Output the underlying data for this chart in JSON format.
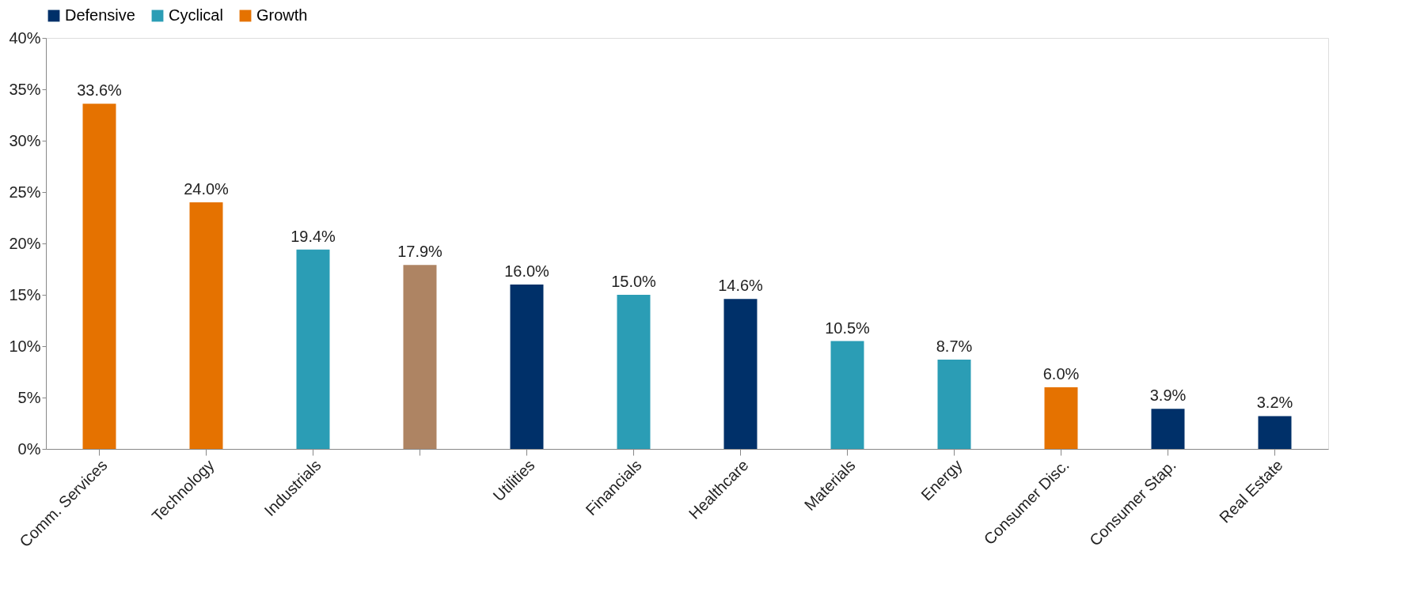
{
  "chart_data": {
    "type": "bar",
    "categories": [
      "Comm. Services",
      "Technology",
      "Industrials",
      null,
      "Utilities",
      "Financials",
      "Healthcare",
      "Materials",
      "Energy",
      "Consumer Disc.",
      "Consumer Stap.",
      "Real Estate"
    ],
    "series": [
      {
        "name": "Defensive",
        "color": "#003069",
        "values": [
          null,
          null,
          null,
          null,
          16.0,
          null,
          14.6,
          null,
          null,
          null,
          3.9,
          3.2
        ]
      },
      {
        "name": "Cyclical",
        "color": "#2b9db5",
        "values": [
          null,
          null,
          19.4,
          null,
          null,
          15.0,
          null,
          10.5,
          8.7,
          null,
          null,
          null
        ]
      },
      {
        "name": "Growth",
        "color": "#e57200",
        "values": [
          33.6,
          24.0,
          null,
          null,
          null,
          null,
          null,
          null,
          null,
          6.0,
          null,
          null
        ]
      },
      {
        "color": "#ae8463",
        "values": [
          null,
          null,
          null,
          17.9,
          null,
          null,
          null,
          null,
          null,
          null,
          null,
          null
        ]
      }
    ],
    "value_labels": [
      "33.6%",
      "24.0%",
      "19.4%",
      "17.9%",
      "16.0%",
      "15.0%",
      "14.6%",
      "10.5%",
      "8.7%",
      "6.0%",
      "3.9%",
      "3.2%"
    ],
    "ylim": [
      0,
      40
    ],
    "yticks": [
      {
        "value": 0,
        "label": "0%"
      },
      {
        "value": 5,
        "label": "5%"
      },
      {
        "value": 10,
        "label": "10%"
      },
      {
        "value": 15,
        "label": "15%"
      },
      {
        "value": 20,
        "label": "20%"
      },
      {
        "value": 25,
        "label": "25%"
      },
      {
        "value": 30,
        "label": "30%"
      },
      {
        "value": 35,
        "label": "35%"
      },
      {
        "value": 40,
        "label": "40%"
      }
    ],
    "grid": false,
    "legend": "top"
  }
}
